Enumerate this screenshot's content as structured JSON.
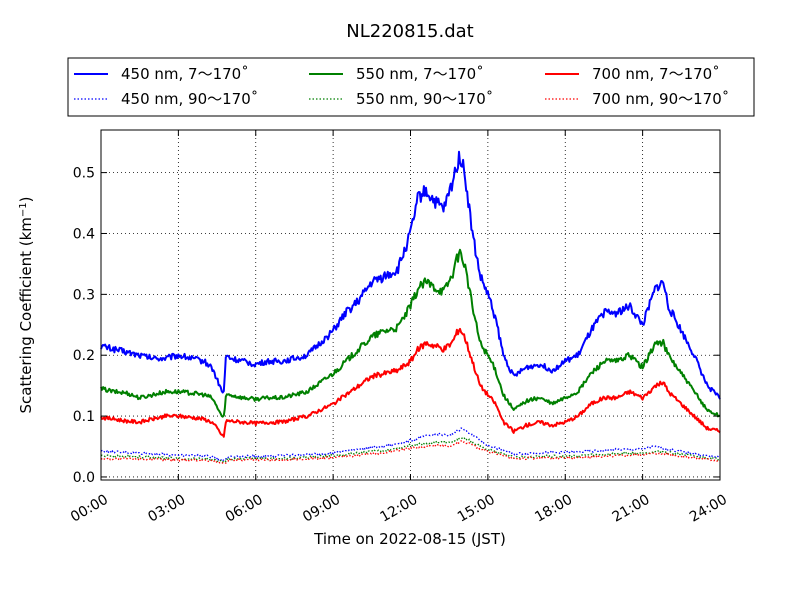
{
  "chart_data": {
    "type": "line",
    "title": "NL220815.dat",
    "xlabel": "Time on 2022-08-15 (JST)",
    "ylabel": "Scattering Coefficient (km",
    "ylabel_sup": "−1",
    "ylabel_end": ")",
    "x_unit": "hours",
    "xlim": [
      0,
      24
    ],
    "ylim": [
      -0.005,
      0.57
    ],
    "x_ticks": [
      {
        "value": 0,
        "label": "00:00"
      },
      {
        "value": 3,
        "label": "03:00"
      },
      {
        "value": 6,
        "label": "06:00"
      },
      {
        "value": 9,
        "label": "09:00"
      },
      {
        "value": 12,
        "label": "12:00"
      },
      {
        "value": 15,
        "label": "15:00"
      },
      {
        "value": 18,
        "label": "18:00"
      },
      {
        "value": 21,
        "label": "21:00"
      },
      {
        "value": 24,
        "label": "24:00"
      }
    ],
    "y_ticks": [
      {
        "value": 0.0,
        "label": "0.0"
      },
      {
        "value": 0.1,
        "label": "0.1"
      },
      {
        "value": 0.2,
        "label": "0.2"
      },
      {
        "value": 0.3,
        "label": "0.3"
      },
      {
        "value": 0.4,
        "label": "0.4"
      },
      {
        "value": 0.5,
        "label": "0.5"
      }
    ],
    "grid": true,
    "legend_position": "top, above plot, 3 columns",
    "series": [
      {
        "name": "450 nm, 7～170˚",
        "color": "#0000ff",
        "style": "solid",
        "x": [
          0,
          0.5,
          1,
          1.5,
          2,
          2.5,
          3,
          3.5,
          4,
          4.3,
          4.5,
          4.75,
          4.85,
          5,
          5.5,
          6,
          6.5,
          7,
          7.5,
          8,
          8.5,
          9,
          9.5,
          10,
          10.5,
          11,
          11.5,
          12,
          12.3,
          12.6,
          13,
          13.3,
          13.6,
          13.9,
          14.1,
          14.4,
          14.7,
          15,
          15.3,
          15.6,
          16,
          16.5,
          17,
          17.5,
          18,
          18.5,
          19,
          19.5,
          20,
          20.5,
          21,
          21.5,
          21.8,
          22,
          22.5,
          23,
          23.5,
          24
        ],
        "y": [
          0.215,
          0.21,
          0.205,
          0.2,
          0.195,
          0.195,
          0.2,
          0.195,
          0.19,
          0.18,
          0.16,
          0.135,
          0.2,
          0.195,
          0.19,
          0.185,
          0.19,
          0.19,
          0.195,
          0.2,
          0.22,
          0.24,
          0.27,
          0.29,
          0.32,
          0.33,
          0.34,
          0.4,
          0.46,
          0.47,
          0.45,
          0.44,
          0.48,
          0.53,
          0.5,
          0.4,
          0.33,
          0.3,
          0.26,
          0.2,
          0.165,
          0.18,
          0.185,
          0.175,
          0.19,
          0.2,
          0.24,
          0.27,
          0.27,
          0.28,
          0.25,
          0.31,
          0.32,
          0.28,
          0.24,
          0.2,
          0.15,
          0.13
        ]
      },
      {
        "name": "550 nm, 7～170˚",
        "color": "#008000",
        "style": "solid",
        "x": [
          0,
          0.5,
          1,
          1.5,
          2,
          2.5,
          3,
          3.5,
          4,
          4.3,
          4.5,
          4.75,
          4.85,
          5,
          5.5,
          6,
          6.5,
          7,
          7.5,
          8,
          8.5,
          9,
          9.5,
          10,
          10.5,
          11,
          11.5,
          12,
          12.3,
          12.6,
          13,
          13.3,
          13.6,
          13.9,
          14.1,
          14.4,
          14.7,
          15,
          15.3,
          15.6,
          16,
          16.5,
          17,
          17.5,
          18,
          18.5,
          19,
          19.5,
          20,
          20.5,
          21,
          21.5,
          21.8,
          22,
          22.5,
          23,
          23.5,
          24
        ],
        "y": [
          0.145,
          0.14,
          0.138,
          0.13,
          0.135,
          0.14,
          0.14,
          0.138,
          0.135,
          0.13,
          0.115,
          0.095,
          0.135,
          0.135,
          0.13,
          0.128,
          0.13,
          0.13,
          0.135,
          0.14,
          0.155,
          0.17,
          0.19,
          0.21,
          0.23,
          0.24,
          0.245,
          0.28,
          0.31,
          0.32,
          0.31,
          0.305,
          0.33,
          0.37,
          0.35,
          0.28,
          0.22,
          0.2,
          0.175,
          0.135,
          0.11,
          0.125,
          0.13,
          0.12,
          0.13,
          0.14,
          0.17,
          0.19,
          0.19,
          0.2,
          0.18,
          0.22,
          0.22,
          0.2,
          0.17,
          0.14,
          0.11,
          0.1
        ]
      },
      {
        "name": "700 nm, 7～170˚",
        "color": "#ff0000",
        "style": "solid",
        "x": [
          0,
          0.5,
          1,
          1.5,
          2,
          2.5,
          3,
          3.5,
          4,
          4.3,
          4.5,
          4.75,
          4.85,
          5,
          5.5,
          6,
          6.5,
          7,
          7.5,
          8,
          8.5,
          9,
          9.5,
          10,
          10.5,
          11,
          11.5,
          12,
          12.3,
          12.6,
          13,
          13.3,
          13.6,
          13.9,
          14.1,
          14.4,
          14.7,
          15,
          15.3,
          15.6,
          16,
          16.5,
          17,
          17.5,
          18,
          18.5,
          19,
          19.5,
          20,
          20.5,
          21,
          21.5,
          21.8,
          22,
          22.5,
          23,
          23.5,
          24
        ],
        "y": [
          0.098,
          0.095,
          0.092,
          0.09,
          0.095,
          0.1,
          0.1,
          0.098,
          0.095,
          0.09,
          0.08,
          0.065,
          0.092,
          0.092,
          0.09,
          0.088,
          0.09,
          0.09,
          0.095,
          0.1,
          0.11,
          0.12,
          0.135,
          0.15,
          0.165,
          0.17,
          0.175,
          0.19,
          0.21,
          0.22,
          0.215,
          0.21,
          0.22,
          0.245,
          0.23,
          0.19,
          0.15,
          0.135,
          0.12,
          0.09,
          0.075,
          0.085,
          0.09,
          0.085,
          0.09,
          0.1,
          0.12,
          0.13,
          0.13,
          0.14,
          0.13,
          0.15,
          0.155,
          0.14,
          0.12,
          0.1,
          0.08,
          0.075
        ]
      },
      {
        "name": "450 nm, 90～170˚",
        "color": "#0000ff",
        "style": "dotted",
        "x": [
          0,
          1,
          2,
          3,
          4,
          4.75,
          5,
          6,
          7,
          8,
          9,
          10,
          11,
          12,
          12.5,
          13,
          13.5,
          14,
          14.3,
          14.7,
          15,
          15.5,
          16,
          17,
          18,
          19,
          20,
          21,
          21.5,
          22,
          23,
          24
        ],
        "y": [
          0.042,
          0.04,
          0.038,
          0.036,
          0.035,
          0.028,
          0.034,
          0.034,
          0.035,
          0.037,
          0.04,
          0.046,
          0.05,
          0.06,
          0.066,
          0.07,
          0.068,
          0.08,
          0.072,
          0.06,
          0.052,
          0.045,
          0.038,
          0.04,
          0.04,
          0.042,
          0.045,
          0.046,
          0.05,
          0.045,
          0.038,
          0.032
        ]
      },
      {
        "name": "550 nm, 90～170˚",
        "color": "#008000",
        "style": "dotted",
        "x": [
          0,
          1,
          2,
          3,
          4,
          4.75,
          5,
          6,
          7,
          8,
          9,
          10,
          11,
          12,
          12.5,
          13,
          13.5,
          14,
          14.3,
          14.7,
          15,
          15.5,
          16,
          17,
          18,
          19,
          20,
          21,
          21.5,
          22,
          23,
          24
        ],
        "y": [
          0.035,
          0.034,
          0.032,
          0.03,
          0.03,
          0.025,
          0.03,
          0.03,
          0.03,
          0.032,
          0.035,
          0.04,
          0.043,
          0.052,
          0.055,
          0.057,
          0.056,
          0.064,
          0.06,
          0.05,
          0.045,
          0.04,
          0.032,
          0.034,
          0.034,
          0.036,
          0.038,
          0.04,
          0.042,
          0.04,
          0.034,
          0.029
        ]
      },
      {
        "name": "700 nm, 90～170˚",
        "color": "#ff0000",
        "style": "dotted",
        "x": [
          0,
          1,
          2,
          3,
          4,
          4.75,
          5,
          6,
          7,
          8,
          9,
          10,
          11,
          12,
          12.5,
          13,
          13.5,
          14,
          14.3,
          14.7,
          15,
          15.5,
          16,
          17,
          18,
          19,
          20,
          21,
          21.5,
          22,
          23,
          24
        ],
        "y": [
          0.03,
          0.03,
          0.029,
          0.028,
          0.028,
          0.023,
          0.028,
          0.028,
          0.028,
          0.03,
          0.032,
          0.036,
          0.04,
          0.048,
          0.05,
          0.052,
          0.051,
          0.058,
          0.055,
          0.046,
          0.042,
          0.037,
          0.03,
          0.031,
          0.031,
          0.033,
          0.035,
          0.037,
          0.039,
          0.037,
          0.031,
          0.027
        ]
      }
    ]
  }
}
